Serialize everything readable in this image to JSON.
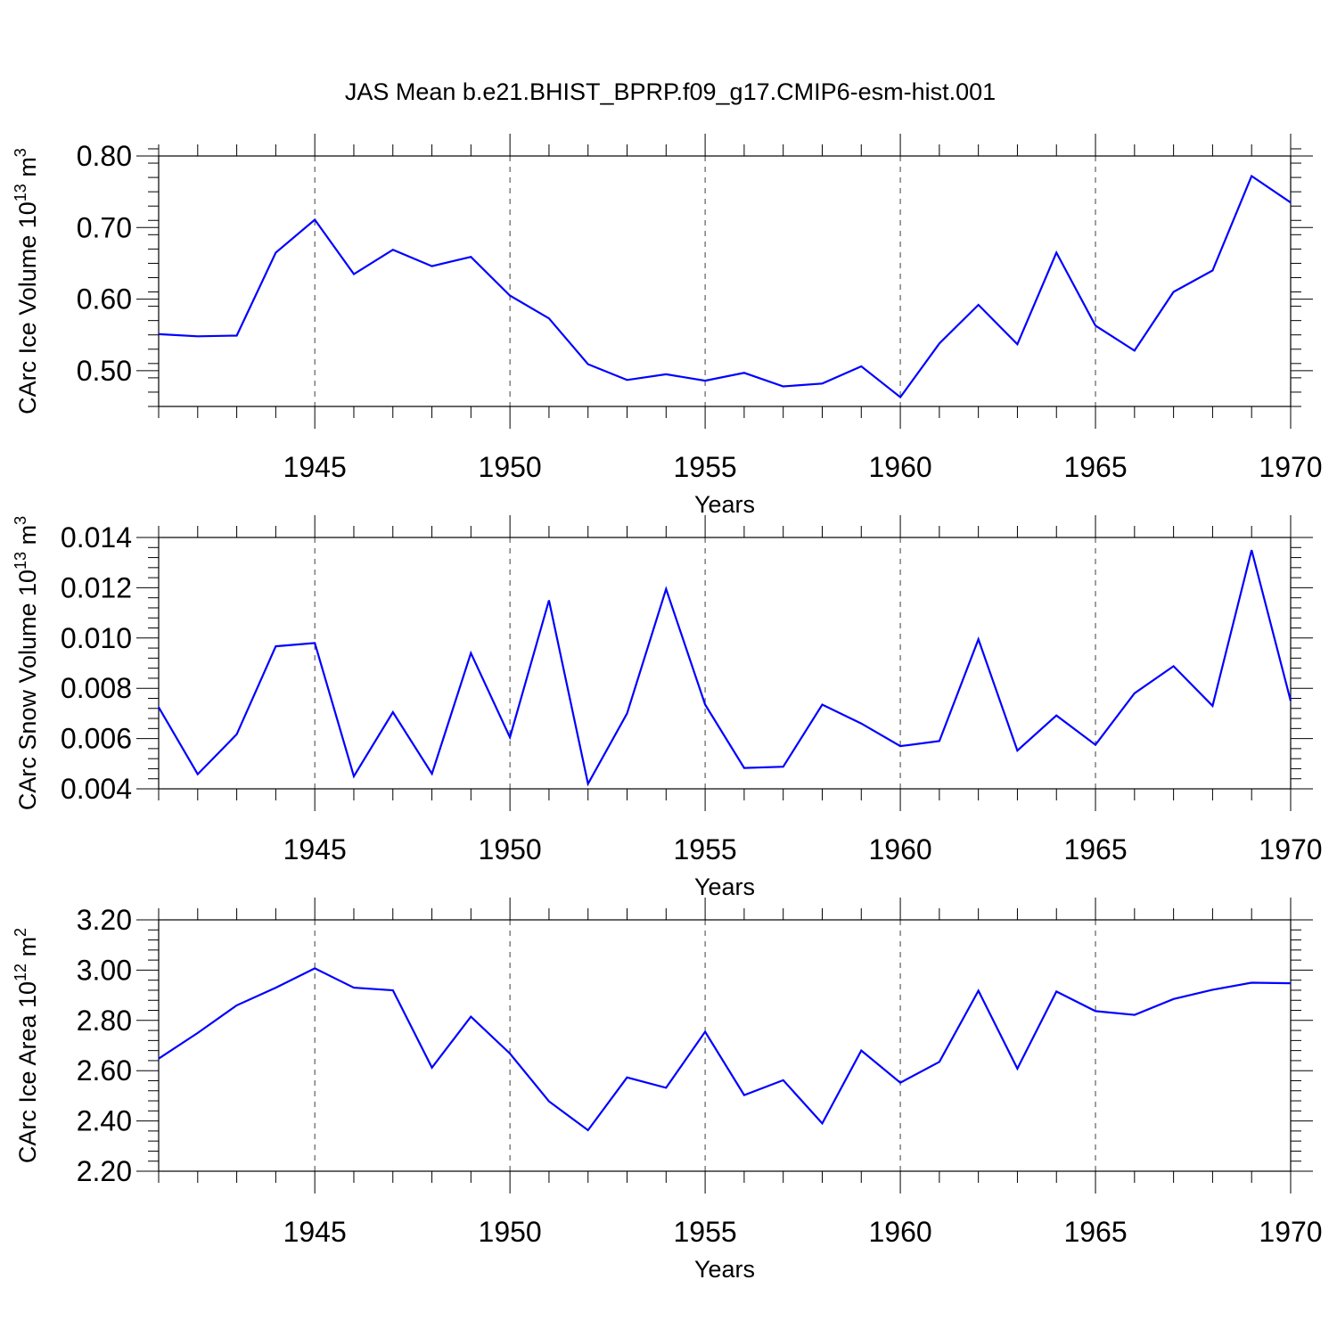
{
  "title": "JAS Mean b.e21.BHIST_BPRP.f09_g17.CMIP6-esm-hist.001",
  "series_color": "#0000ff",
  "chart_data": [
    {
      "type": "line",
      "ylabel_main": "CArc Ice Volume 10",
      "ylabel_exp": "13",
      "ylabel_unit": " m",
      "ylabel_unit_exp": "3",
      "xlabel": "Years",
      "xlim": [
        1941,
        1970
      ],
      "ylim": [
        0.45,
        0.8
      ],
      "ymajor": [
        0.5,
        0.6,
        0.7,
        0.8
      ],
      "ytick_labels": [
        "0.50",
        "0.60",
        "0.70",
        "0.80"
      ],
      "yminor_step": 0.02,
      "xmajor": [
        1945,
        1950,
        1955,
        1960,
        1965,
        1970
      ],
      "xtick_labels": [
        "1945",
        "1950",
        "1955",
        "1960",
        "1965",
        "1970"
      ],
      "x": [
        1941,
        1942,
        1943,
        1944,
        1945,
        1946,
        1947,
        1948,
        1949,
        1950,
        1951,
        1952,
        1953,
        1954,
        1955,
        1956,
        1957,
        1958,
        1959,
        1960,
        1961,
        1962,
        1963,
        1964,
        1965,
        1966,
        1967,
        1968,
        1969,
        1970
      ],
      "y": [
        0.551,
        0.548,
        0.549,
        0.665,
        0.711,
        0.635,
        0.669,
        0.646,
        0.659,
        0.605,
        0.573,
        0.509,
        0.487,
        0.495,
        0.486,
        0.497,
        0.478,
        0.482,
        0.506,
        0.463,
        0.538,
        0.592,
        0.537,
        0.665,
        0.563,
        0.528,
        0.61,
        0.64,
        0.772,
        0.735
      ]
    },
    {
      "type": "line",
      "ylabel_main": "CArc Snow Volume 10",
      "ylabel_exp": "13",
      "ylabel_unit": " m",
      "ylabel_unit_exp": "3",
      "xlabel": "Years",
      "xlim": [
        1941,
        1970
      ],
      "ylim": [
        0.004,
        0.014
      ],
      "ymajor": [
        0.004,
        0.006,
        0.008,
        0.01,
        0.012,
        0.014
      ],
      "ytick_labels": [
        "0.004",
        "0.006",
        "0.008",
        "0.010",
        "0.012",
        "0.014"
      ],
      "yminor_step": 0.0004,
      "xmajor": [
        1945,
        1950,
        1955,
        1960,
        1965,
        1970
      ],
      "xtick_labels": [
        "1945",
        "1950",
        "1955",
        "1960",
        "1965",
        "1970"
      ],
      "x": [
        1941,
        1942,
        1943,
        1944,
        1945,
        1946,
        1947,
        1948,
        1949,
        1950,
        1951,
        1952,
        1953,
        1954,
        1955,
        1956,
        1957,
        1958,
        1959,
        1960,
        1961,
        1962,
        1963,
        1964,
        1965,
        1966,
        1967,
        1968,
        1969,
        1970
      ],
      "y": [
        0.00725,
        0.00458,
        0.00617,
        0.00967,
        0.0098,
        0.0045,
        0.00705,
        0.0046,
        0.0094,
        0.00605,
        0.0115,
        0.0042,
        0.007,
        0.01195,
        0.00735,
        0.00483,
        0.00488,
        0.00735,
        0.0066,
        0.0057,
        0.0059,
        0.00995,
        0.00552,
        0.00692,
        0.00575,
        0.0078,
        0.00888,
        0.0073,
        0.0135,
        0.0075
      ]
    },
    {
      "type": "line",
      "ylabel_main": "CArc Ice Area 10",
      "ylabel_exp": "12",
      "ylabel_unit": " m",
      "ylabel_unit_exp": "2",
      "xlabel": "Years",
      "xlim": [
        1941,
        1970
      ],
      "ylim": [
        2.2,
        3.2
      ],
      "ymajor": [
        2.2,
        2.4,
        2.6,
        2.8,
        3.0,
        3.2
      ],
      "ytick_labels": [
        "2.20",
        "2.40",
        "2.60",
        "2.80",
        "3.00",
        "3.20"
      ],
      "yminor_step": 0.04,
      "xmajor": [
        1945,
        1950,
        1955,
        1960,
        1965,
        1970
      ],
      "xtick_labels": [
        "1945",
        "1950",
        "1955",
        "1960",
        "1965",
        "1970"
      ],
      "x": [
        1941,
        1942,
        1943,
        1944,
        1945,
        1946,
        1947,
        1948,
        1949,
        1950,
        1951,
        1952,
        1953,
        1954,
        1955,
        1956,
        1957,
        1958,
        1959,
        1960,
        1961,
        1962,
        1963,
        1964,
        1965,
        1966,
        1967,
        1968,
        1969,
        1970
      ],
      "y": [
        2.648,
        2.75,
        2.86,
        2.93,
        3.007,
        2.93,
        2.92,
        2.612,
        2.815,
        2.668,
        2.478,
        2.363,
        2.573,
        2.532,
        2.755,
        2.503,
        2.562,
        2.39,
        2.68,
        2.552,
        2.635,
        2.918,
        2.608,
        2.915,
        2.837,
        2.822,
        2.885,
        2.922,
        2.95,
        2.948
      ]
    }
  ]
}
